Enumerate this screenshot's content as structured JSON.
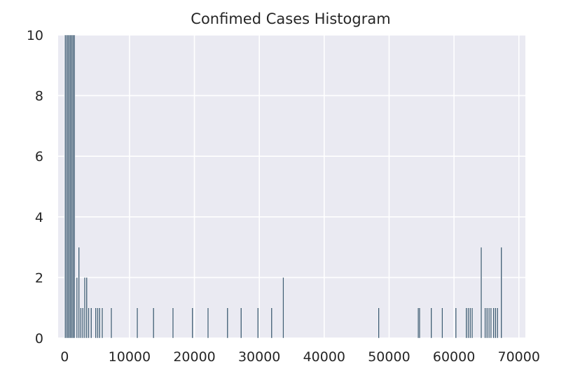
{
  "chart_data": {
    "type": "bar",
    "title": "Confimed Cases Histogram",
    "xlabel": "",
    "ylabel": "",
    "xlim": [
      -1000,
      71000
    ],
    "ylim": [
      0,
      10
    ],
    "grid": true,
    "background_color": "#eaeaf2",
    "bar_color": "#3d5a73",
    "x_ticks": [
      0,
      10000,
      20000,
      30000,
      40000,
      50000,
      60000,
      70000
    ],
    "y_ticks": [
      0,
      2,
      4,
      6,
      8,
      10
    ],
    "bin_width": 200,
    "bins": [
      {
        "x": 0,
        "count": 10
      },
      {
        "x": 200,
        "count": 10
      },
      {
        "x": 400,
        "count": 10
      },
      {
        "x": 600,
        "count": 10
      },
      {
        "x": 800,
        "count": 10
      },
      {
        "x": 1000,
        "count": 10
      },
      {
        "x": 1200,
        "count": 10
      },
      {
        "x": 1400,
        "count": 10
      },
      {
        "x": 1800,
        "count": 2
      },
      {
        "x": 2100,
        "count": 3
      },
      {
        "x": 2400,
        "count": 1
      },
      {
        "x": 2700,
        "count": 1
      },
      {
        "x": 3000,
        "count": 2
      },
      {
        "x": 3300,
        "count": 2
      },
      {
        "x": 3600,
        "count": 1
      },
      {
        "x": 4000,
        "count": 1
      },
      {
        "x": 4700,
        "count": 1
      },
      {
        "x": 5000,
        "count": 1
      },
      {
        "x": 5300,
        "count": 1
      },
      {
        "x": 5700,
        "count": 1
      },
      {
        "x": 7100,
        "count": 1
      },
      {
        "x": 11100,
        "count": 1
      },
      {
        "x": 13600,
        "count": 1
      },
      {
        "x": 16600,
        "count": 1
      },
      {
        "x": 19600,
        "count": 1
      },
      {
        "x": 22000,
        "count": 1
      },
      {
        "x": 25000,
        "count": 1
      },
      {
        "x": 27100,
        "count": 1
      },
      {
        "x": 29700,
        "count": 1
      },
      {
        "x": 31800,
        "count": 1
      },
      {
        "x": 33600,
        "count": 2
      },
      {
        "x": 48300,
        "count": 1
      },
      {
        "x": 54400,
        "count": 1
      },
      {
        "x": 54600,
        "count": 1
      },
      {
        "x": 56400,
        "count": 1
      },
      {
        "x": 58100,
        "count": 1
      },
      {
        "x": 60200,
        "count": 1
      },
      {
        "x": 61800,
        "count": 1
      },
      {
        "x": 62100,
        "count": 1
      },
      {
        "x": 62400,
        "count": 1
      },
      {
        "x": 62700,
        "count": 1
      },
      {
        "x": 64100,
        "count": 3
      },
      {
        "x": 64700,
        "count": 1
      },
      {
        "x": 65000,
        "count": 1
      },
      {
        "x": 65300,
        "count": 1
      },
      {
        "x": 65600,
        "count": 1
      },
      {
        "x": 66000,
        "count": 1
      },
      {
        "x": 66300,
        "count": 1
      },
      {
        "x": 66600,
        "count": 1
      },
      {
        "x": 67200,
        "count": 3
      }
    ]
  }
}
